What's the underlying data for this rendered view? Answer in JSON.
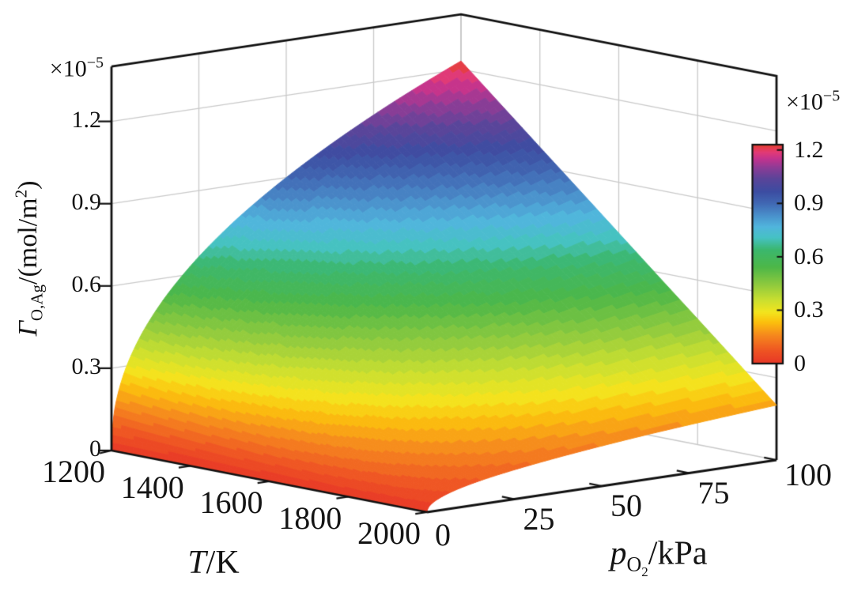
{
  "figure": {
    "z_axis": {
      "scale_base": "×10",
      "scale_exp": "−5",
      "ticks": [
        "0",
        "0.3",
        "0.6",
        "0.9",
        "1.2"
      ],
      "title": {
        "symbol": "Γ",
        "symbol_sub": "O,Ag",
        "unit_pre": "/(mol/m",
        "unit_sup": "2",
        "unit_post": ")"
      }
    },
    "t_axis": {
      "ticks": [
        "1200",
        "1400",
        "1600",
        "1800",
        "2000"
      ],
      "title": {
        "symbol": "T",
        "unit": "/K"
      }
    },
    "p_axis": {
      "ticks": [
        "0",
        "25",
        "50",
        "75",
        "100"
      ],
      "title": {
        "symbol": "p",
        "sub_main": "O",
        "sub_sub": "2",
        "unit": "/kPa"
      }
    },
    "colorbar": {
      "scale_base": "×10",
      "scale_exp": "−5",
      "ticks": [
        "1.2",
        "0.9",
        "0.6",
        "0.3",
        "0"
      ]
    }
  },
  "chart_data": {
    "type": "surface3d",
    "x_label": "T/K",
    "y_label": "pO2/kPa",
    "z_label": "Γ_O,Ag/(mol/m2)",
    "z_scale_factor": "1e-5",
    "T_range": [
      1200,
      2000
    ],
    "p_range": [
      0,
      100
    ],
    "z_range": [
      0,
      1.4
    ],
    "z_axis_ticks": [
      0,
      0.3,
      0.6,
      0.9,
      1.2
    ],
    "T_ticks": [
      1200,
      1400,
      1600,
      1800,
      2000
    ],
    "p_ticks": [
      0,
      25,
      50,
      75,
      100
    ],
    "T_values": [
      1200,
      1300,
      1400,
      1500,
      1600,
      1700,
      1800,
      1900,
      2000
    ],
    "p_values": [
      0,
      1,
      4,
      9,
      16,
      25,
      36,
      49,
      64,
      81,
      100
    ],
    "z_grid": [
      [
        0,
        0.155,
        0.289,
        0.416,
        0.539,
        0.659,
        0.777,
        0.892,
        1.006,
        1.119,
        1.23
      ],
      [
        0,
        0.139,
        0.259,
        0.373,
        0.483,
        0.59,
        0.695,
        0.799,
        0.901,
        1.001,
        1.101
      ],
      [
        0,
        0.122,
        0.228,
        0.329,
        0.426,
        0.521,
        0.614,
        0.705,
        0.795,
        0.884,
        0.972
      ],
      [
        0,
        0.106,
        0.198,
        0.286,
        0.37,
        0.452,
        0.533,
        0.612,
        0.69,
        0.768,
        0.844
      ],
      [
        0,
        0.09,
        0.168,
        0.242,
        0.313,
        0.383,
        0.452,
        0.519,
        0.585,
        0.65,
        0.715
      ],
      [
        0,
        0.074,
        0.138,
        0.198,
        0.257,
        0.314,
        0.37,
        0.425,
        0.479,
        0.533,
        0.586
      ],
      [
        0,
        0.058,
        0.108,
        0.155,
        0.201,
        0.245,
        0.289,
        0.332,
        0.375,
        0.417,
        0.458
      ],
      [
        0,
        0.041,
        0.077,
        0.111,
        0.144,
        0.176,
        0.208,
        0.239,
        0.269,
        0.299,
        0.329
      ],
      [
        0,
        0.025,
        0.047,
        0.068,
        0.088,
        0.107,
        0.126,
        0.145,
        0.164,
        0.182,
        0.2
      ]
    ],
    "colorbar_range": [
      0,
      1.23
    ],
    "colormap": [
      [
        0.0,
        "#e73727"
      ],
      [
        0.055,
        "#ee5223"
      ],
      [
        0.13,
        "#f6891d"
      ],
      [
        0.19,
        "#fcc10d"
      ],
      [
        0.235,
        "#f3e51e"
      ],
      [
        0.29,
        "#cadf30"
      ],
      [
        0.36,
        "#8fca3e"
      ],
      [
        0.44,
        "#4db748"
      ],
      [
        0.52,
        "#3bb76e"
      ],
      [
        0.575,
        "#46c2c4"
      ],
      [
        0.625,
        "#51b5dd"
      ],
      [
        0.675,
        "#4a91cc"
      ],
      [
        0.73,
        "#4169b4"
      ],
      [
        0.785,
        "#3c4da2"
      ],
      [
        0.845,
        "#5b4499"
      ],
      [
        0.895,
        "#8d3c96"
      ],
      [
        0.935,
        "#c2338e"
      ],
      [
        0.965,
        "#e23a76"
      ],
      [
        1.0,
        "#e73e2d"
      ]
    ],
    "grid_color": "#c9c9c9",
    "frame_color": "#111111"
  }
}
